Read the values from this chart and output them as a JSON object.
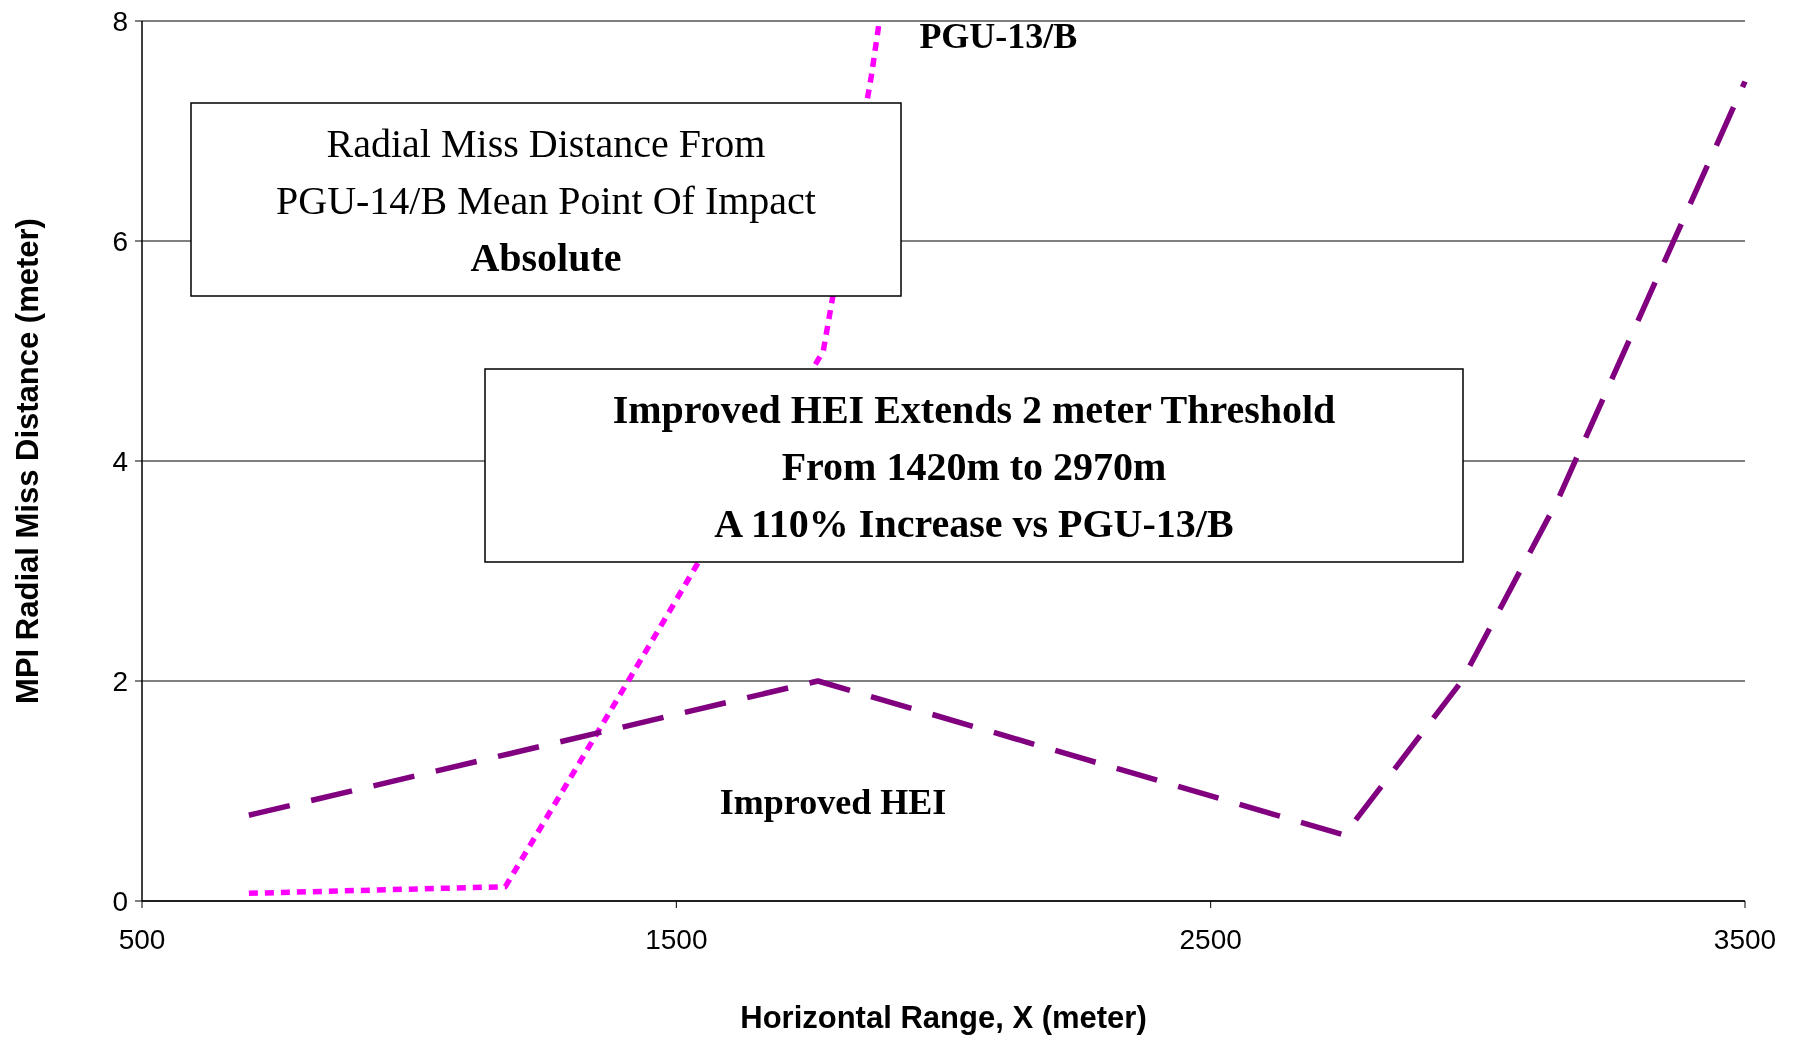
{
  "chart_data": {
    "type": "line",
    "xlabel": "Horizontal Range, X (meter)",
    "ylabel": "MPI Radial Miss Distance (meter)",
    "xlim": [
      500,
      3500
    ],
    "xticks": [
      500,
      1500,
      2500,
      3500
    ],
    "ylim": [
      0,
      8
    ],
    "yticks": [
      0,
      2,
      4,
      6,
      8
    ],
    "grid": "y",
    "series": [
      {
        "name": "PGU-13/B",
        "color": "#ff00ff",
        "line_style": "dotted",
        "x": [
          700,
          1180,
          1410,
          1775,
          1865,
          1880
        ],
        "values": [
          0.07,
          0.13,
          2.0,
          5.0,
          7.5,
          8.0
        ]
      },
      {
        "name": "Improved HEI",
        "color": "#800080",
        "line_style": "dashed",
        "x": [
          700,
          1765,
          2750,
          2970,
          3150,
          3500
        ],
        "values": [
          0.78,
          2.0,
          0.6,
          2.0,
          3.65,
          7.45
        ]
      }
    ],
    "annotations": [
      "Radial Miss Distance From\nPGU-14/B Mean Point Of Impact\nAbsolute",
      "Improved HEI Extends 2 meter Threshold\nFrom 1420m to 2970m\nA 110% Increase vs PGU-13/B"
    ]
  }
}
